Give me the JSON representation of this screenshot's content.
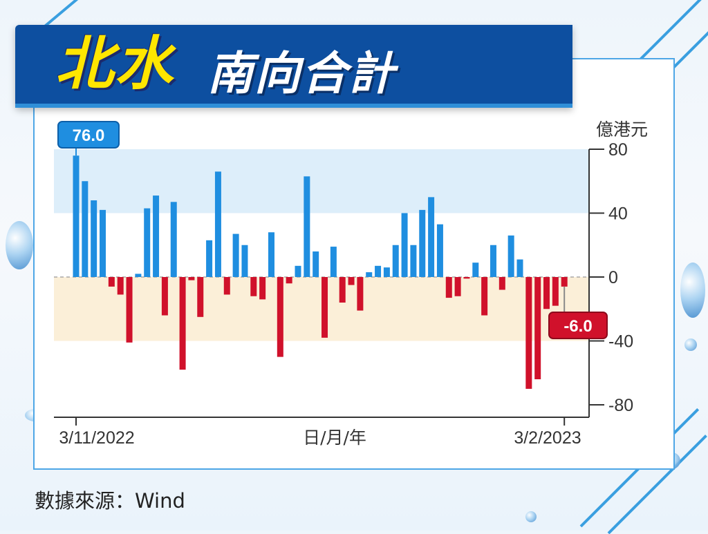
{
  "header": {
    "title_part1": "北水",
    "title_part2": "南向合計"
  },
  "source_text": "數據來源：Wind",
  "colors": {
    "positive": "#1f8ee0",
    "negative": "#d0112b",
    "banner": "#0d4fa0",
    "title_yellow": "#ffe600",
    "band_high": "#ddeefa",
    "band_low": "#fbefd8"
  },
  "chart_data": {
    "type": "bar",
    "ylabel": "億港元",
    "xlabel": "日/月/年",
    "ylim": [
      -88,
      88
    ],
    "yticks": [
      80,
      40,
      0,
      -40,
      -80
    ],
    "ytick_labels": [
      "80",
      "40",
      "0",
      "-40",
      "-80"
    ],
    "x_start_label": "3/11/2022",
    "x_end_label": "3/2/2023",
    "bands": [
      {
        "from": 40,
        "to": 80,
        "color": "#ddeefa"
      },
      {
        "from": -40,
        "to": 0,
        "color": "#fbefd8"
      }
    ],
    "values": [
      76.0,
      60,
      48,
      42,
      -6,
      -11,
      -41,
      2,
      43,
      51,
      -24,
      47,
      -58,
      -2,
      -25,
      23,
      66,
      -11,
      27,
      20,
      -12,
      -14,
      28,
      -50,
      -4,
      7,
      63,
      16,
      -38,
      19,
      -16,
      -5,
      -21,
      3,
      7,
      6,
      20,
      40,
      20,
      42,
      50,
      33,
      -13,
      -12,
      -1,
      9,
      -24,
      20,
      -8,
      26,
      11,
      -70,
      -64,
      -20,
      -18,
      -6.0
    ],
    "first_value_label": "76.0",
    "last_value_label": "-6.0"
  }
}
